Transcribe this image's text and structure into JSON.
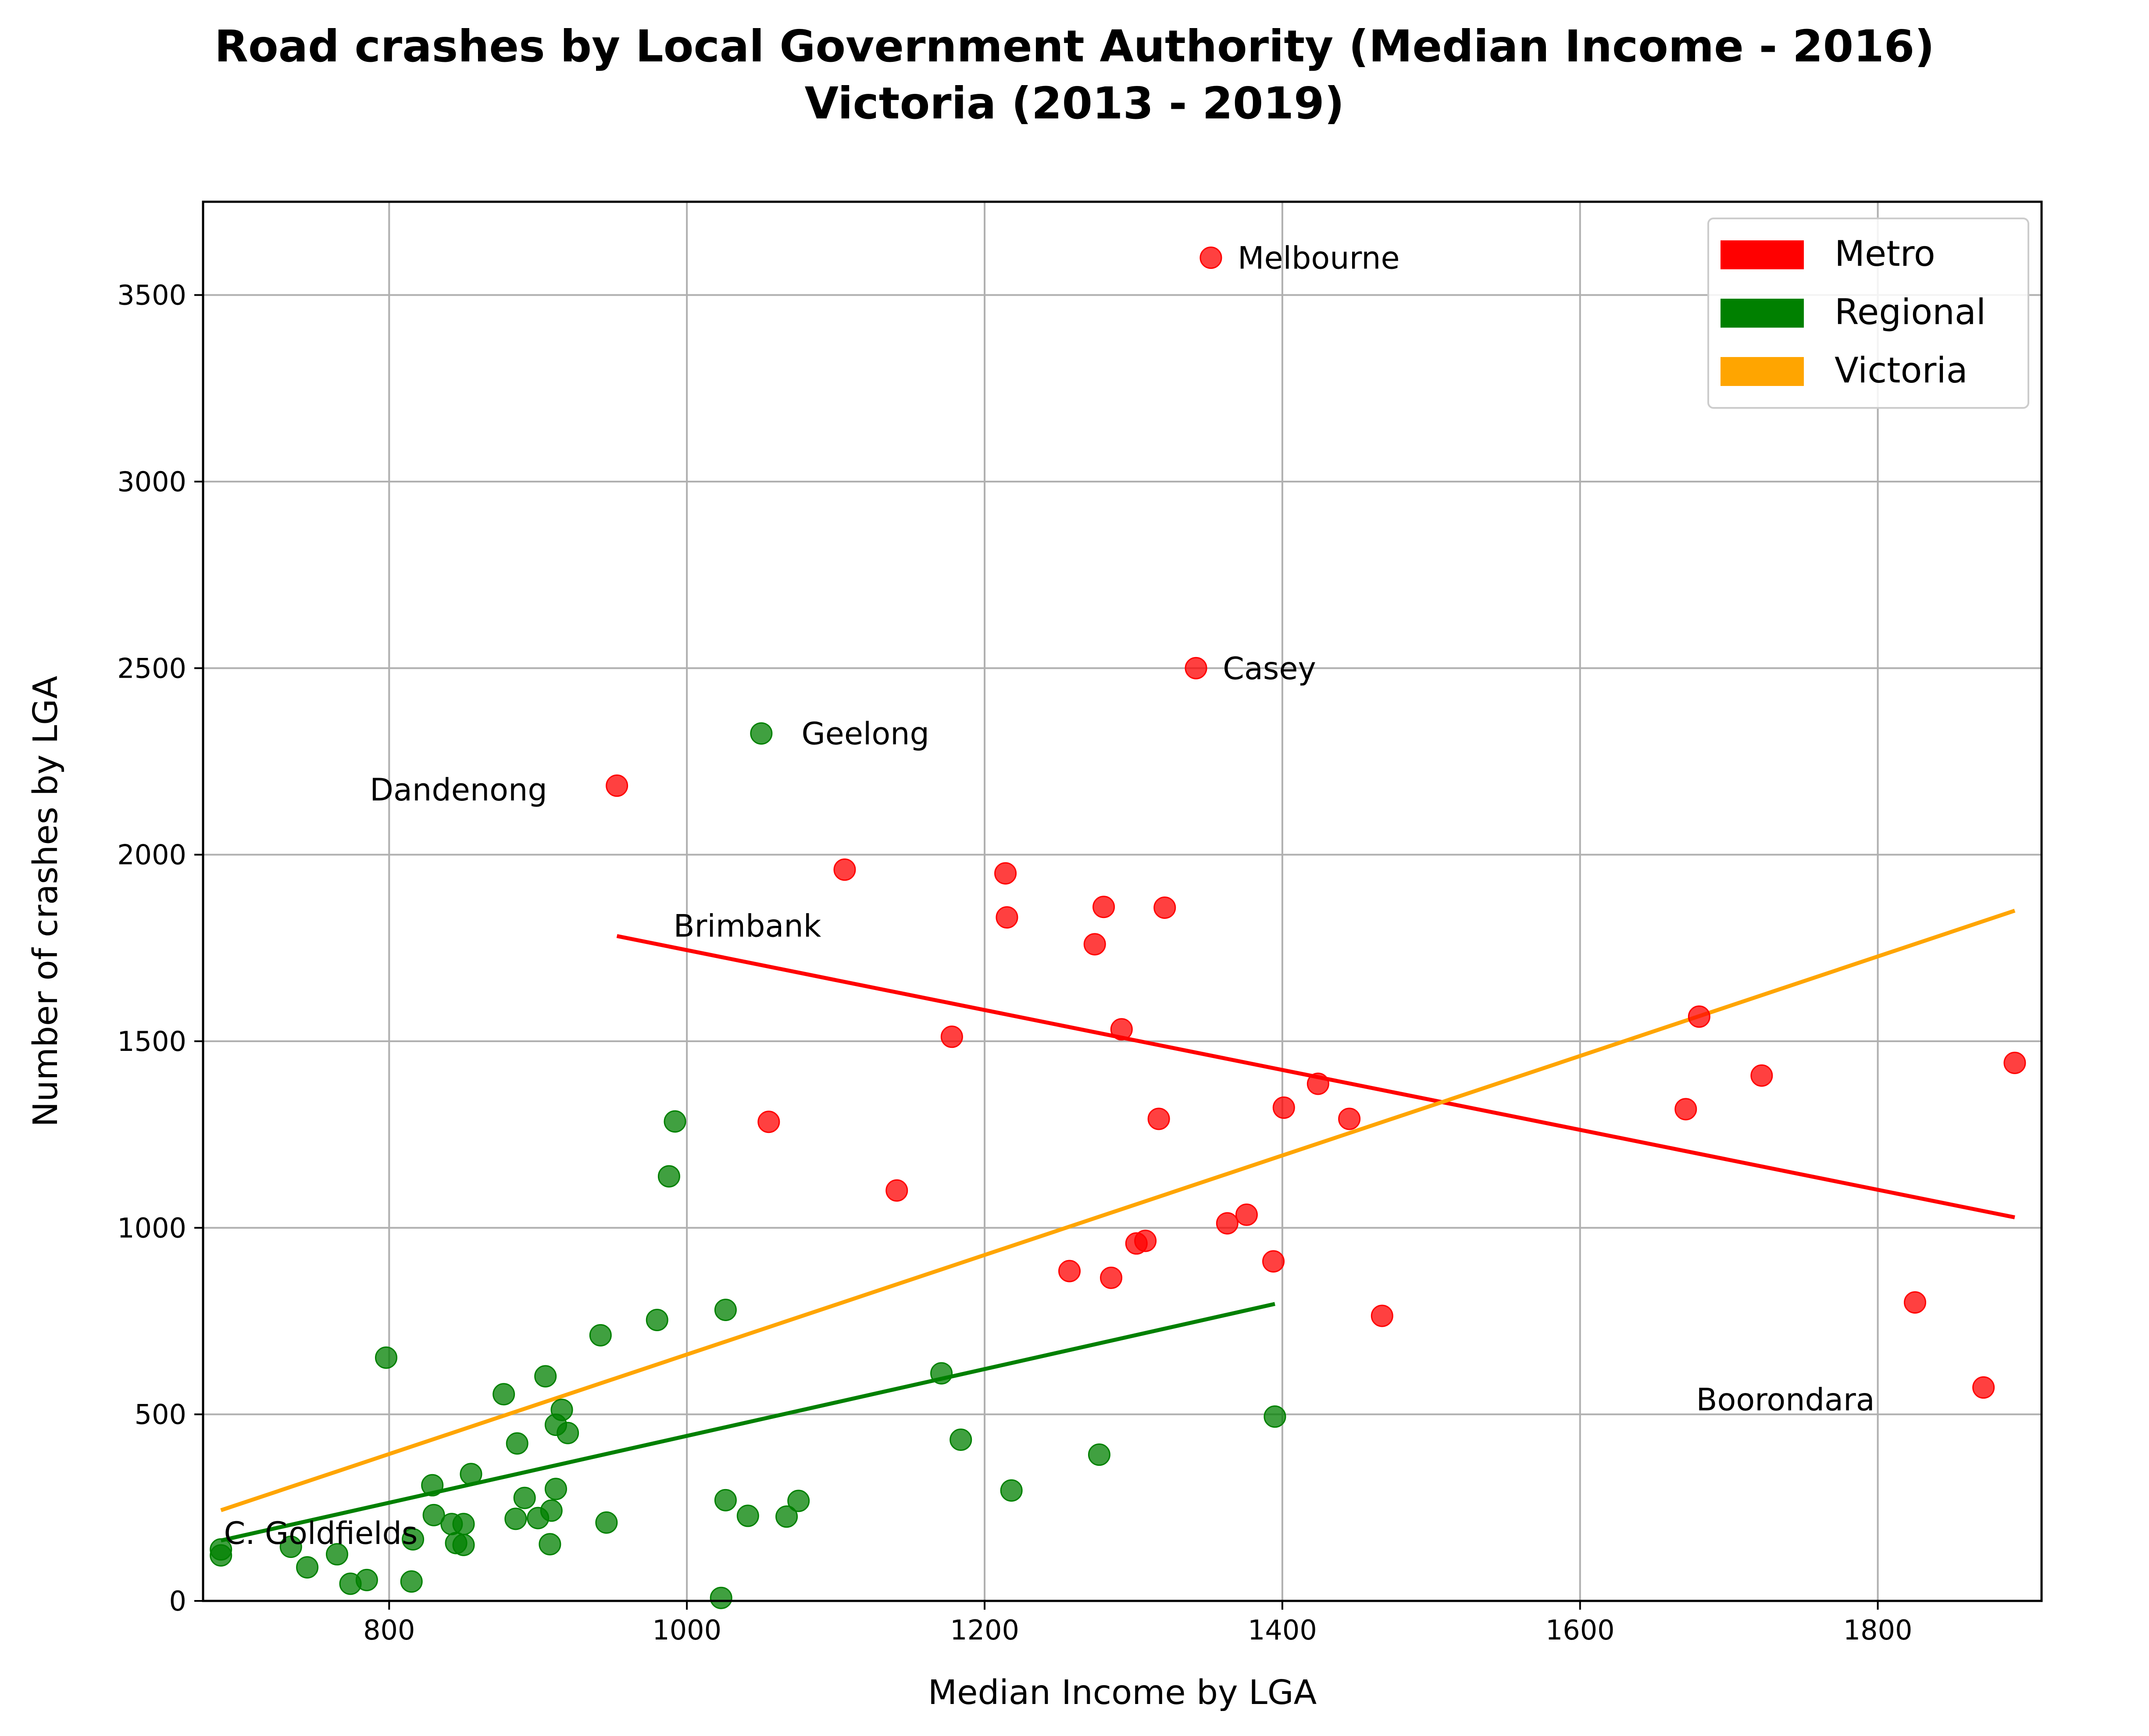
{
  "chart_data": {
    "type": "scatter",
    "title": "Road crashes by Local Government Authority (Median Income - 2016)",
    "subtitle": "Victoria (2013 - 2019)",
    "xlabel": "Median Income by LGA",
    "ylabel": "Number of crashes by LGA",
    "xlim": [
      675,
      1910
    ],
    "ylim": [
      0,
      3750
    ],
    "xticks": [
      800,
      1000,
      1200,
      1400,
      1600,
      1800
    ],
    "yticks": [
      0,
      500,
      1000,
      1500,
      2000,
      2500,
      3000,
      3500
    ],
    "grid": true,
    "legend": {
      "position": "top-right",
      "entries": [
        "Metro",
        "Regional",
        "Victoria"
      ]
    },
    "colors": {
      "Metro": "#ff0000",
      "Regional": "#008000",
      "Victoria": "#ffa500"
    },
    "series": [
      {
        "name": "Metro",
        "points": [
          [
            1352,
            3600
          ],
          [
            1342,
            2500
          ],
          [
            953,
            2185
          ],
          [
            1106,
            1960
          ],
          [
            1214,
            1950
          ],
          [
            1215,
            1832
          ],
          [
            1280,
            1860
          ],
          [
            1321,
            1858
          ],
          [
            1274,
            1760
          ],
          [
            1178,
            1512
          ],
          [
            1292,
            1532
          ],
          [
            1680,
            1566
          ],
          [
            1722,
            1408
          ],
          [
            1892,
            1442
          ],
          [
            1424,
            1386
          ],
          [
            1401,
            1322
          ],
          [
            1445,
            1292
          ],
          [
            1671,
            1318
          ],
          [
            1055,
            1284
          ],
          [
            1317,
            1292
          ],
          [
            1141,
            1100
          ],
          [
            1376,
            1035
          ],
          [
            1363,
            1012
          ],
          [
            1308,
            965
          ],
          [
            1302,
            958
          ],
          [
            1394,
            910
          ],
          [
            1257,
            884
          ],
          [
            1285,
            866
          ],
          [
            1467,
            764
          ],
          [
            1825,
            800
          ],
          [
            1871,
            572
          ]
        ]
      },
      {
        "name": "Regional",
        "points": [
          [
            1050,
            2325
          ],
          [
            992,
            1285
          ],
          [
            988,
            1138
          ],
          [
            1026,
            780
          ],
          [
            980,
            753
          ],
          [
            942,
            712
          ],
          [
            798,
            652
          ],
          [
            1171,
            610
          ],
          [
            905,
            602
          ],
          [
            877,
            554
          ],
          [
            916,
            512
          ],
          [
            912,
            472
          ],
          [
            920,
            450
          ],
          [
            886,
            422
          ],
          [
            1184,
            432
          ],
          [
            1395,
            494
          ],
          [
            855,
            340
          ],
          [
            829,
            310
          ],
          [
            1277,
            392
          ],
          [
            912,
            300
          ],
          [
            1218,
            296
          ],
          [
            891,
            276
          ],
          [
            1026,
            270
          ],
          [
            1075,
            268
          ],
          [
            830,
            230
          ],
          [
            909,
            242
          ],
          [
            900,
            222
          ],
          [
            885,
            220
          ],
          [
            1041,
            228
          ],
          [
            1067,
            226
          ],
          [
            946,
            210
          ],
          [
            842,
            206
          ],
          [
            850,
            206
          ],
          [
            816,
            165
          ],
          [
            845,
            155
          ],
          [
            850,
            150
          ],
          [
            908,
            152
          ],
          [
            734,
            145
          ],
          [
            687,
            122
          ],
          [
            687,
            138
          ],
          [
            765,
            125
          ],
          [
            745,
            90
          ],
          [
            785,
            56
          ],
          [
            774,
            46
          ],
          [
            815,
            52
          ],
          [
            1023,
            8
          ]
        ]
      }
    ],
    "trend_lines": [
      {
        "name": "Metro",
        "from": [
          953,
          1782
        ],
        "to": [
          1892,
          1028
        ]
      },
      {
        "name": "Regional",
        "from": [
          687,
          162
        ],
        "to": [
          1395,
          796
        ]
      },
      {
        "name": "Victoria",
        "from": [
          687,
          243
        ],
        "to": [
          1892,
          1850
        ]
      }
    ],
    "annotations": [
      {
        "text": "Melbourne",
        "x": 1370,
        "y": 3600
      },
      {
        "text": "Casey",
        "x": 1360,
        "y": 2500
      },
      {
        "text": "Geelong",
        "x": 1077,
        "y": 2325
      },
      {
        "text": "Dandenong",
        "x": 787,
        "y": 2175
      },
      {
        "text": "Brimbank",
        "x": 991,
        "y": 1810
      },
      {
        "text": "Boorondara",
        "x": 1678,
        "y": 540
      },
      {
        "text": "C. Goldfields",
        "x": 689,
        "y": 182
      }
    ]
  }
}
